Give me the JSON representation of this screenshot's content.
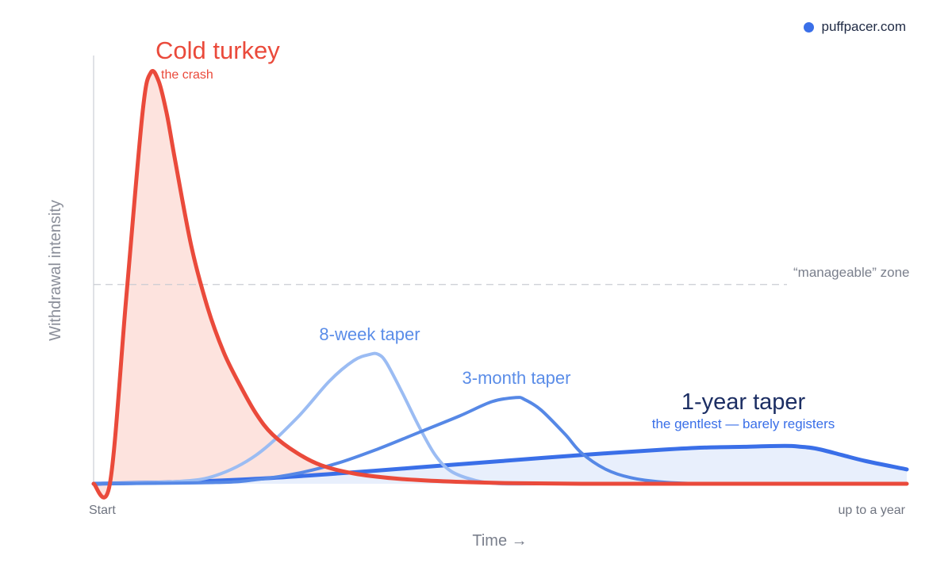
{
  "brand": {
    "text": "puffpacer.com",
    "icon": "dot-icon",
    "color": "#3a6fe8"
  },
  "chart_data": {
    "type": "line",
    "title": "",
    "xlabel": "Time →",
    "ylabel": "Withdrawal intensity",
    "x_tick_labels": [
      "Start",
      "up to a year"
    ],
    "xlim": [
      0,
      1
    ],
    "ylim": [
      0,
      1
    ],
    "grid": false,
    "reference_line": {
      "label": "“manageable” zone",
      "y": 0.485
    },
    "series": [
      {
        "name": "Cold turkey",
        "subtitle": "the crash",
        "color": "#ea4a3b",
        "fill": "#fde3de",
        "x": [
          0,
          0.02,
          0.04,
          0.06,
          0.07,
          0.08,
          0.09,
          0.1,
          0.12,
          0.14,
          0.16,
          0.18,
          0.2,
          0.22,
          0.25,
          0.28,
          0.32,
          0.37,
          0.43,
          0.5,
          0.6,
          0.8,
          1.0
        ],
        "y": [
          0,
          0,
          0.45,
          0.9,
          1.0,
          0.98,
          0.9,
          0.79,
          0.58,
          0.43,
          0.32,
          0.24,
          0.17,
          0.12,
          0.075,
          0.045,
          0.025,
          0.013,
          0.006,
          0.002,
          0,
          0,
          0
        ]
      },
      {
        "name": "8-week taper",
        "color": "#9bbcf3",
        "x": [
          0,
          0.1,
          0.15,
          0.2,
          0.25,
          0.29,
          0.32,
          0.34,
          0.35,
          0.36,
          0.38,
          0.4,
          0.42,
          0.44,
          0.47,
          0.5,
          0.55,
          0.6,
          0.8,
          1.0
        ],
        "y": [
          0,
          0.005,
          0.02,
          0.07,
          0.16,
          0.25,
          0.3,
          0.315,
          0.315,
          0.295,
          0.22,
          0.14,
          0.07,
          0.03,
          0.008,
          0,
          0,
          0,
          0,
          0
        ]
      },
      {
        "name": "3-month taper",
        "color": "#5688e6",
        "x": [
          0,
          0.15,
          0.2,
          0.25,
          0.3,
          0.35,
          0.4,
          0.45,
          0.49,
          0.52,
          0.53,
          0.55,
          0.58,
          0.6,
          0.63,
          0.66,
          0.7,
          0.75,
          0.8,
          1.0
        ],
        "y": [
          0,
          0.003,
          0.01,
          0.025,
          0.05,
          0.085,
          0.125,
          0.165,
          0.2,
          0.21,
          0.205,
          0.18,
          0.12,
          0.075,
          0.035,
          0.015,
          0.004,
          0,
          0,
          0
        ]
      },
      {
        "name": "1-year taper",
        "subtitle": "the gentlest — barely registers",
        "color": "#3a6fe8",
        "fill": "#e8effc",
        "x": [
          0,
          0.1,
          0.2,
          0.3,
          0.4,
          0.5,
          0.6,
          0.7,
          0.75,
          0.8,
          0.85,
          0.87,
          0.89,
          0.92,
          0.95,
          1.0
        ],
        "y": [
          0,
          0.004,
          0.012,
          0.025,
          0.04,
          0.055,
          0.07,
          0.083,
          0.088,
          0.09,
          0.092,
          0.09,
          0.085,
          0.07,
          0.055,
          0.035
        ]
      }
    ]
  }
}
